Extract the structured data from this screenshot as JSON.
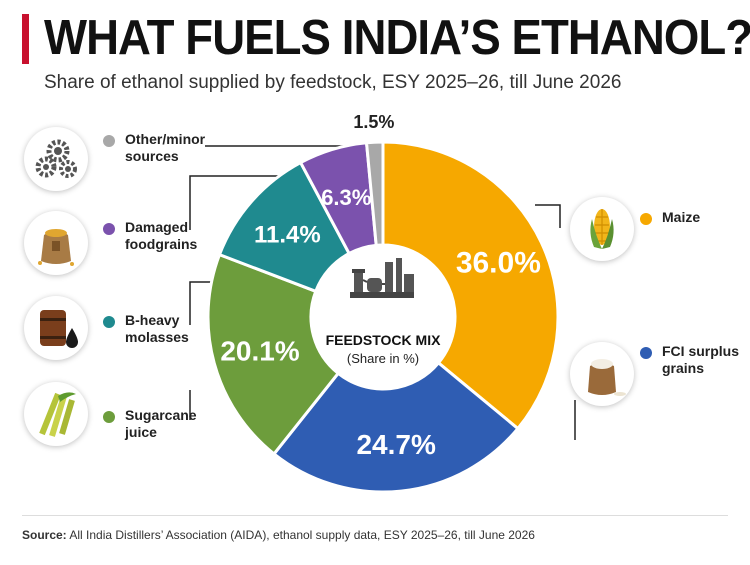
{
  "header": {
    "title": "WHAT FUELS INDIA’S ETHANOL?",
    "subtitle": "Share of ethanol supplied by feedstock, ESY 2025–26, till June 2026",
    "accent_color": "#c8102e"
  },
  "center": {
    "title": "FEEDSTOCK MIX",
    "subtitle": "(Share in %)"
  },
  "chart_data": {
    "type": "pie",
    "donut": true,
    "title": "WHAT FUELS INDIA’S ETHANOL?",
    "subtitle": "Share of ethanol supplied by feedstock, ESY 2025–26, till June 2026",
    "unit": "%",
    "categories": [
      "Maize",
      "FCI surplus grains",
      "Sugarcane juice",
      "B-heavy molasses",
      "Damaged foodgrains",
      "Other/minor sources"
    ],
    "values": [
      36.0,
      24.7,
      20.1,
      11.4,
      6.3,
      1.5
    ],
    "labels": [
      "36.0%",
      "24.7%",
      "20.1%",
      "11.4%",
      "6.3%",
      "1.5%"
    ],
    "colors": [
      "#f6a800",
      "#2f5db3",
      "#6d9d3c",
      "#1f8a8f",
      "#7b52ad",
      "#a8a8a8"
    ],
    "legend_position": "left-and-right"
  },
  "legend": {
    "maize": "Maize",
    "fci": "FCI surplus grains",
    "sugarcane": "Sugarcane juice",
    "molasses": "B-heavy molasses",
    "damaged": "Damaged foodgrains",
    "other": "Other/minor sources"
  },
  "icons": {
    "other": "gears-icon",
    "damaged": "grain-sack-icon",
    "molasses": "molasses-barrel-icon",
    "sugarcane": "sugarcane-icon",
    "maize": "maize-cob-icon",
    "fci": "rice-sack-icon",
    "center": "distillery-icon"
  },
  "source": {
    "label": "Source:",
    "text": "All India Distillers’ Association (AIDA), ethanol supply data, ESY 2025–26, till June 2026"
  }
}
